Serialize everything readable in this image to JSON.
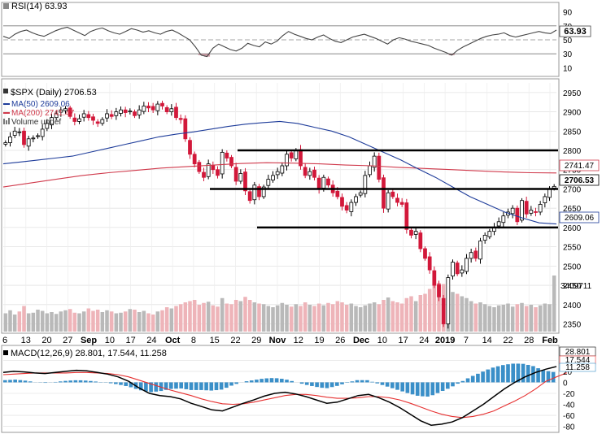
{
  "chart_data": {
    "type": "candlestick",
    "symbol_label": "$SPX (Daily) 2706.53",
    "last_price": 2706.53,
    "x_ticks": [
      "6",
      "13",
      "20",
      "27",
      "Sep",
      "10",
      "17",
      "24",
      "Oct",
      "8",
      "15",
      "22",
      "29",
      "Nov",
      "12",
      "19",
      "26",
      "Dec",
      "10",
      "17",
      "24",
      "2019",
      "7",
      "14",
      "22",
      "28",
      "Feb"
    ],
    "price_axis": {
      "ticks": [
        2350,
        2400,
        2450,
        2500,
        2550,
        2600,
        2650,
        2700,
        2750,
        2800,
        2850,
        2900,
        2950
      ],
      "range": [
        2330,
        2975
      ]
    },
    "closes": [
      2820,
      2835,
      2850,
      2848,
      2815,
      2830,
      2832,
      2838,
      2855,
      2870,
      2885,
      2895,
      2905,
      2908,
      2888,
      2875,
      2882,
      2895,
      2885,
      2878,
      2870,
      2880,
      2895,
      2888,
      2900,
      2905,
      2898,
      2902,
      2890,
      2905,
      2915,
      2910,
      2905,
      2920,
      2915,
      2900,
      2908,
      2885,
      2880,
      2830,
      2790,
      2765,
      2745,
      2730,
      2765,
      2750,
      2735,
      2795,
      2780,
      2760,
      2720,
      2740,
      2695,
      2670,
      2710,
      2680,
      2705,
      2725,
      2735,
      2745,
      2760,
      2790,
      2780,
      2800,
      2760,
      2735,
      2745,
      2730,
      2700,
      2730,
      2710,
      2690,
      2680,
      2655,
      2645,
      2665,
      2680,
      2690,
      2735,
      2760,
      2785,
      2725,
      2650,
      2690,
      2680,
      2665,
      2660,
      2595,
      2580,
      2590,
      2545,
      2520,
      2490,
      2450,
      2420,
      2350,
      2470,
      2510,
      2480,
      2490,
      2520,
      2535,
      2520,
      2565,
      2580,
      2590,
      2600,
      2615,
      2630,
      2640,
      2650,
      2615,
      2670,
      2635,
      2645,
      2640,
      2660,
      2680,
      2700,
      2706.53
    ],
    "overlays": [
      {
        "name": "MA(50)",
        "value": 2609.06,
        "label": "MA(50) 2609.06",
        "color": "#1e3c9a",
        "values": [
          2765,
          2770,
          2775,
          2780,
          2785,
          2795,
          2805,
          2815,
          2825,
          2835,
          2842,
          2848,
          2855,
          2862,
          2868,
          2872,
          2875,
          2870,
          2860,
          2850,
          2835,
          2815,
          2795,
          2775,
          2752,
          2730,
          2705,
          2680,
          2660,
          2640,
          2625,
          2612,
          2609.06
        ]
      },
      {
        "name": "MA(200)",
        "value": 2741.47,
        "label": "MA(200) 2741.47",
        "color": "#d03a4c",
        "values": [
          2705,
          2715,
          2725,
          2735,
          2742,
          2748,
          2754,
          2758,
          2762,
          2766,
          2768,
          2767,
          2765,
          2762,
          2760,
          2756,
          2753,
          2750,
          2747,
          2744,
          2742,
          2741.47
        ]
      }
    ],
    "horizontal_lines": [
      2800,
      2700,
      2600
    ],
    "volume": {
      "label": "Volume undef",
      "last_label": "3409711",
      "max": 3409711,
      "values": [
        0.3,
        0.35,
        0.28,
        0.33,
        0.42,
        0.3,
        0.31,
        0.36,
        0.34,
        0.3,
        0.32,
        0.29,
        0.33,
        0.35,
        0.37,
        0.31,
        0.3,
        0.33,
        0.38,
        0.34,
        0.36,
        0.32,
        0.35,
        0.33,
        0.3,
        0.31,
        0.33,
        0.37,
        0.36,
        0.32,
        0.34,
        0.3,
        0.28,
        0.33,
        0.35,
        0.4,
        0.38,
        0.42,
        0.45,
        0.48,
        0.5,
        0.52,
        0.44,
        0.47,
        0.49,
        0.43,
        0.41,
        0.55,
        0.46,
        0.45,
        0.52,
        0.5,
        0.57,
        0.52,
        0.48,
        0.46,
        0.45,
        0.42,
        0.4,
        0.43,
        0.47,
        0.44,
        0.41,
        0.45,
        0.42,
        0.48,
        0.44,
        0.42,
        0.46,
        0.43,
        0.47,
        0.45,
        0.5,
        0.48,
        0.44,
        0.46,
        0.42,
        0.4,
        0.43,
        0.46,
        0.48,
        0.45,
        0.52,
        0.56,
        0.5,
        0.48,
        0.46,
        0.55,
        0.58,
        0.5,
        0.6,
        0.62,
        0.7,
        0.76,
        0.8,
        0.78,
        0.74,
        0.65,
        0.62,
        0.58,
        0.55,
        0.5,
        0.46,
        0.48,
        0.45,
        0.42,
        0.4,
        0.43,
        0.44,
        0.46,
        0.41,
        0.45,
        0.47,
        0.42,
        0.44,
        0.4,
        0.43,
        0.46,
        0.45,
        0.92
      ]
    },
    "rsi": {
      "label": "RSI(14) 63.93",
      "value": 63.93,
      "ticks": [
        10,
        30,
        50,
        70,
        90
      ],
      "values": [
        55,
        52,
        58,
        62,
        64,
        60,
        57,
        55,
        59,
        63,
        66,
        68,
        64,
        60,
        56,
        62,
        65,
        67,
        63,
        60,
        58,
        62,
        66,
        64,
        61,
        63,
        60,
        58,
        62,
        64,
        60,
        55,
        50,
        40,
        28,
        26,
        38,
        44,
        40,
        36,
        34,
        38,
        45,
        42,
        40,
        47,
        44,
        48,
        56,
        62,
        58,
        55,
        52,
        50,
        54,
        57,
        52,
        48,
        46,
        50,
        54,
        56,
        58,
        55,
        52,
        48,
        44,
        50,
        53,
        51,
        48,
        46,
        44,
        42,
        38,
        35,
        32,
        28,
        35,
        40,
        44,
        48,
        52,
        55,
        57,
        58,
        60,
        56,
        54,
        56,
        58,
        60,
        62,
        60,
        59,
        63.93
      ]
    },
    "macd": {
      "label": "MACD(12,26,9) 28.801, 17.544, 11.258",
      "macd": 28.801,
      "signal": 17.544,
      "histogram": 11.258,
      "ticks": [
        -80,
        -60,
        -40,
        -20,
        0,
        20,
        40
      ],
      "macd_values": [
        18,
        20,
        19,
        17,
        16,
        18,
        20,
        22,
        21,
        18,
        15,
        10,
        2,
        -10,
        -20,
        -24,
        -26,
        -30,
        -38,
        -44,
        -50,
        -52,
        -45,
        -38,
        -32,
        -25,
        -20,
        -18,
        -21,
        -26,
        -32,
        -38,
        -36,
        -30,
        -24,
        -22,
        -28,
        -36,
        -46,
        -58,
        -70,
        -78,
        -76,
        -72,
        -64,
        -52,
        -40,
        -26,
        -12,
        0,
        10,
        18,
        24,
        28.801
      ],
      "signal_values": [
        14,
        15,
        16,
        17,
        17,
        17,
        17,
        18,
        18,
        17,
        16,
        14,
        10,
        4,
        -2,
        -8,
        -14,
        -19,
        -24,
        -30,
        -35,
        -39,
        -40,
        -39,
        -36,
        -32,
        -28,
        -24,
        -22,
        -22,
        -24,
        -27,
        -29,
        -29,
        -28,
        -26,
        -26,
        -28,
        -32,
        -38,
        -45,
        -52,
        -58,
        -62,
        -64,
        -62,
        -58,
        -52,
        -43,
        -34,
        -24,
        -12,
        2,
        10,
        17.544
      ]
    }
  }
}
